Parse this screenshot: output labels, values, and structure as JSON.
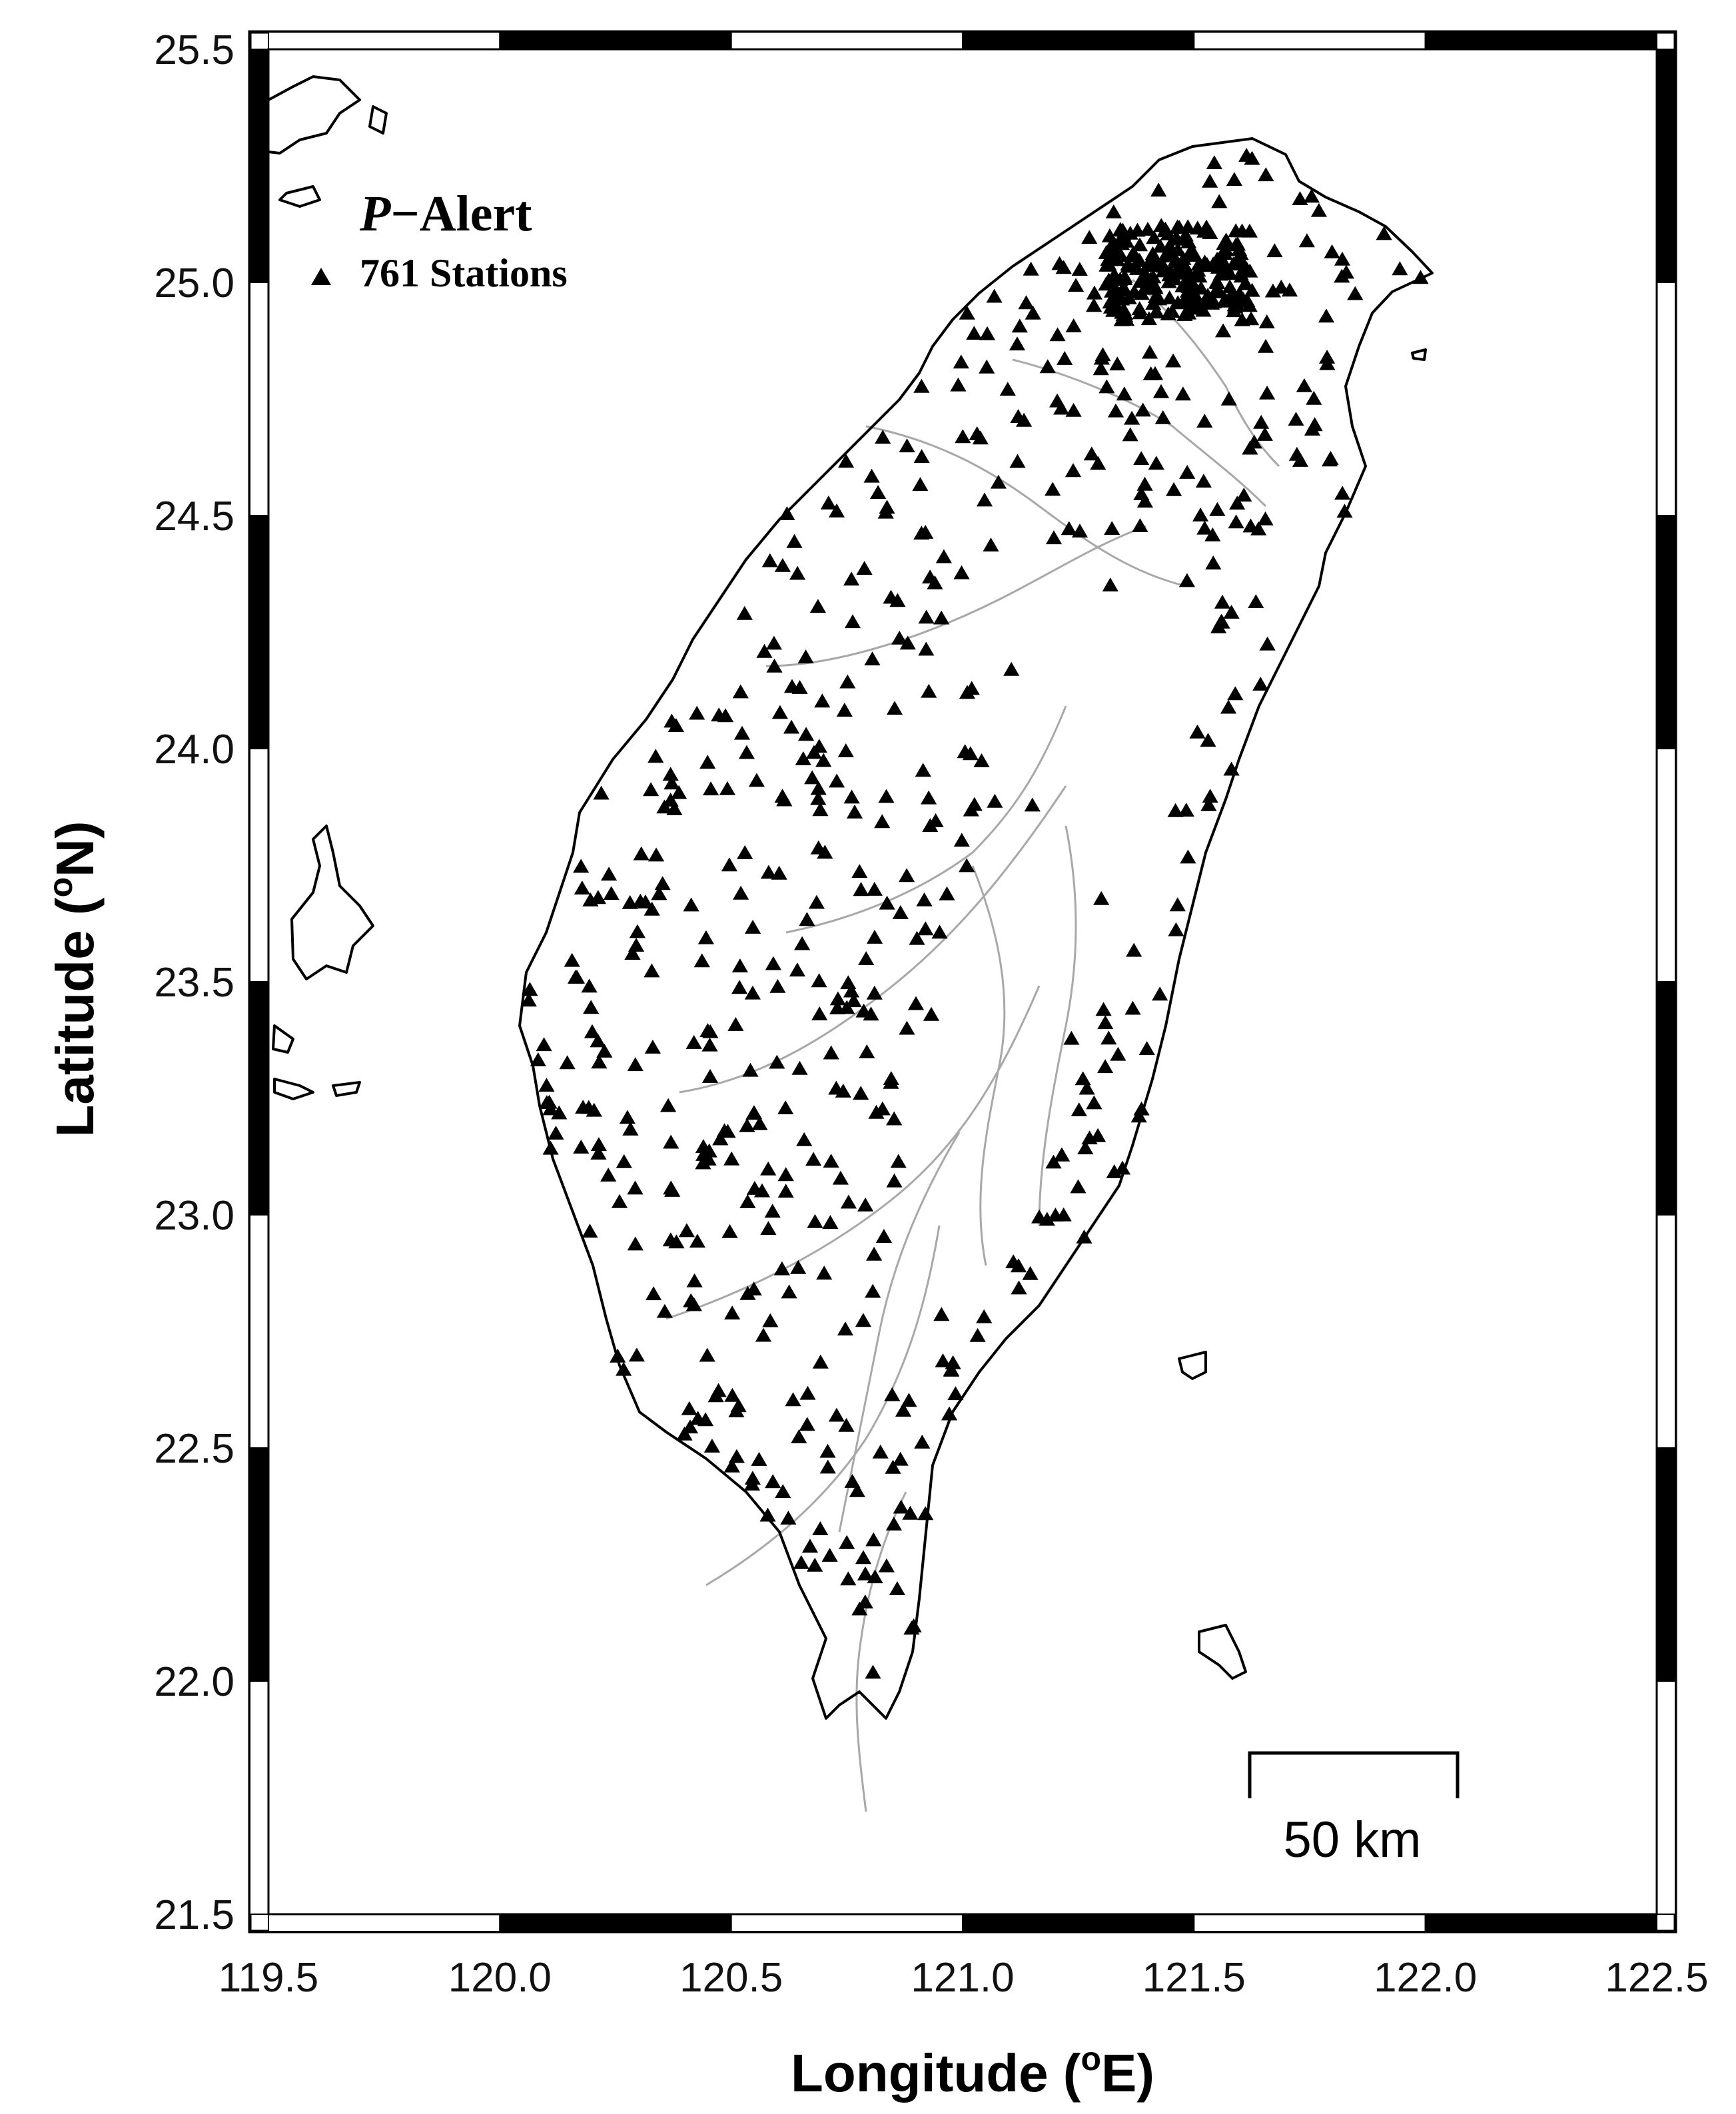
{
  "map": {
    "legend": {
      "title_italic": "P",
      "title_rest": "−Alert",
      "station_text": "761 Stations",
      "marker": "triangle-icon"
    },
    "axes": {
      "x_title_main": "Longitude (",
      "x_title_sup": "o",
      "x_title_end": "E)",
      "y_title_main": "Latitude (",
      "y_title_sup": "o",
      "y_title_end": "N)",
      "x_ticks": [
        "119.5",
        "120.0",
        "120.5",
        "121.0",
        "121.5",
        "122.0",
        "122.5"
      ],
      "y_ticks": [
        "25.5",
        "25.0",
        "24.5",
        "24.0",
        "23.5",
        "23.0",
        "22.5",
        "22.0",
        "21.5"
      ]
    },
    "extent": {
      "lon": [
        119.5,
        122.5
      ],
      "lat": [
        21.5,
        25.5
      ]
    },
    "scale_bar": {
      "label": "50 km",
      "km": 50
    },
    "station_count": 761,
    "colors": {
      "coast": "#000000",
      "rivers": "#a8a8a8",
      "stations": "#000000"
    }
  }
}
